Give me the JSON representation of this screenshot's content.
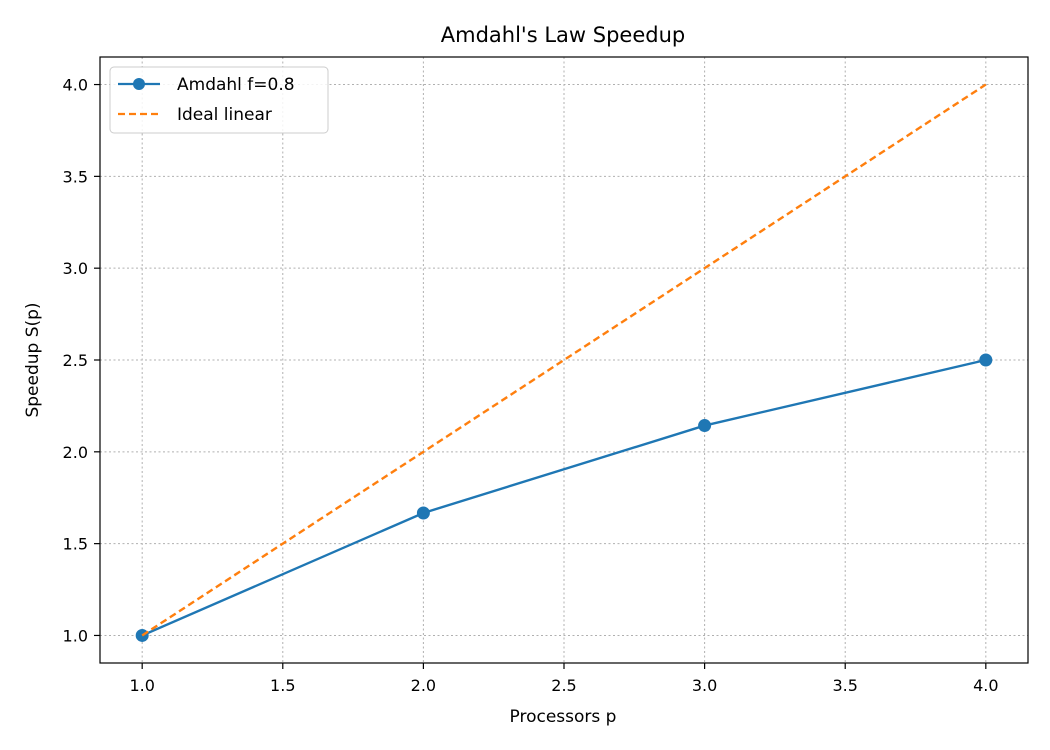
{
  "chart_data": {
    "type": "line",
    "title": "Amdahl's Law Speedup",
    "xlabel": "Processors p",
    "ylabel": "Speedup S(p)",
    "xlim": [
      0.85,
      4.15
    ],
    "ylim": [
      0.85,
      4.15
    ],
    "x_ticks": [
      "1.0",
      "1.5",
      "2.0",
      "2.5",
      "3.0",
      "3.5",
      "4.0"
    ],
    "y_ticks": [
      "1.0",
      "1.5",
      "2.0",
      "2.5",
      "3.0",
      "3.5",
      "4.0"
    ],
    "grid": true,
    "legend_position": "upper-left",
    "series": [
      {
        "name": "Amdahl f=0.8",
        "x": [
          1,
          2,
          3,
          4
        ],
        "y": [
          1.0,
          1.667,
          2.143,
          2.5
        ],
        "color": "#1f77b4",
        "style": "solid-markers"
      },
      {
        "name": "Ideal linear",
        "x": [
          1,
          2,
          3,
          4
        ],
        "y": [
          1.0,
          2.0,
          3.0,
          4.0
        ],
        "color": "#ff7f0e",
        "style": "dashed"
      }
    ]
  }
}
